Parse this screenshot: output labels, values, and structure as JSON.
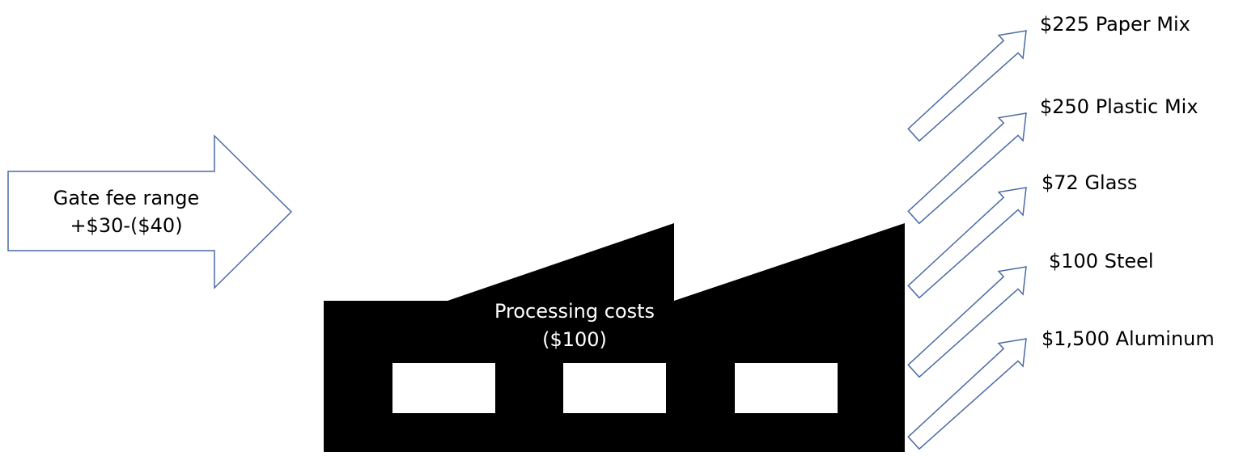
{
  "gate_fee": {
    "line1": "Gate fee range",
    "line2": "+$30-($40)"
  },
  "processing": {
    "line1": "Processing costs",
    "line2": "($100)"
  },
  "outputs": [
    "$225 Paper Mix",
    "$250 Plastic Mix",
    "$72 Glass",
    "$100 Steel",
    "$1,500 Aluminum"
  ],
  "colors": {
    "arrow_stroke": "#4a6aa5",
    "factory_fill": "#000000",
    "window_fill": "#ffffff",
    "processing_text": "#ffffff"
  }
}
